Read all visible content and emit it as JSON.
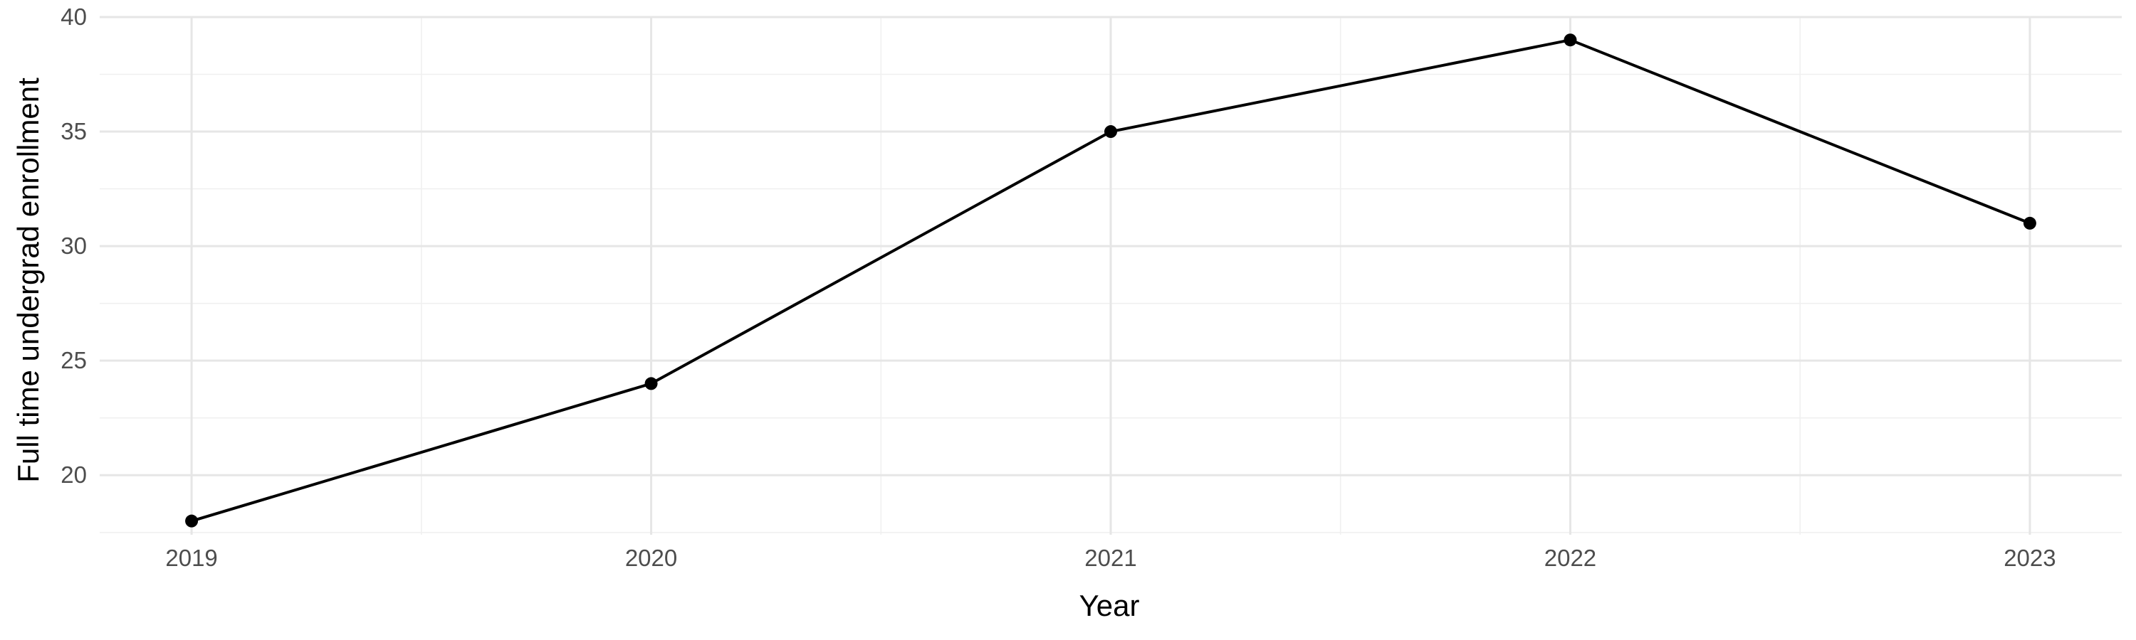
{
  "chart_data": {
    "type": "line",
    "title": "",
    "xlabel": "Year",
    "ylabel": "Full time undergrad enrollment",
    "x": [
      2019,
      2020,
      2021,
      2022,
      2023
    ],
    "x_tick_labels": [
      "2019",
      "2020",
      "2021",
      "2022",
      "2023"
    ],
    "y_ticks": [
      20,
      25,
      30,
      35,
      40
    ],
    "y_tick_labels": [
      "20",
      "25",
      "30",
      "35",
      "40"
    ],
    "series": [
      {
        "values": [
          18,
          24,
          35,
          39,
          31
        ]
      }
    ],
    "xlim": [
      2018.8,
      2023.2
    ],
    "ylim": [
      17.4,
      40
    ],
    "grid": true,
    "colors": {
      "line": "#000000",
      "points": "#000000",
      "grid_major": "#e6e6e6",
      "grid_minor": "#f0f0f0",
      "tick_text": "#4d4d4d"
    }
  }
}
